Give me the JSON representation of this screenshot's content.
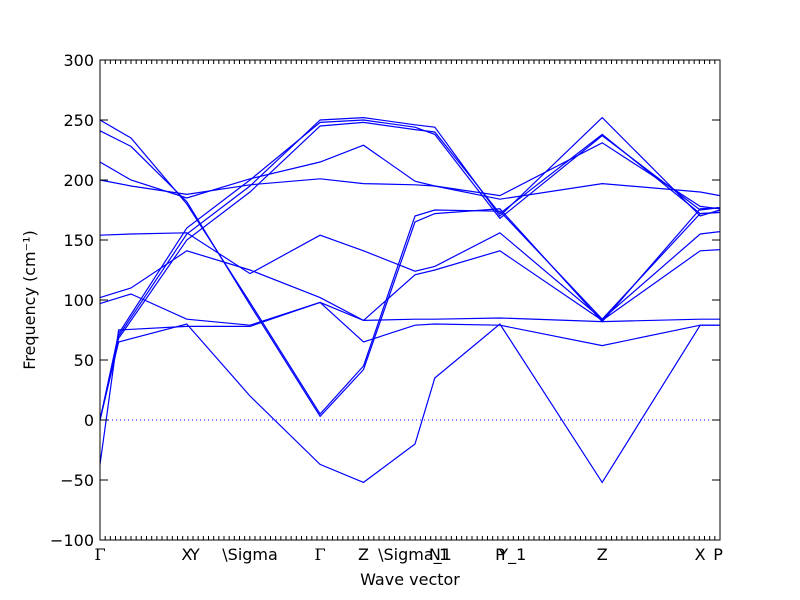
{
  "chart_data": {
    "type": "line",
    "xlabel": "Wave vector",
    "ylabel": "Frequency (cm⁻¹)",
    "ylim": [
      -100,
      300
    ],
    "y_ticks": [
      -100,
      -50,
      0,
      50,
      100,
      150,
      200,
      250,
      300
    ],
    "y_tick_labels": [
      "−100",
      "−50",
      "0",
      "50",
      "100",
      "150",
      "200",
      "250",
      "300"
    ],
    "xlim": [
      0,
      1
    ],
    "high_symmetry_points": [
      {
        "label": "Γ",
        "x": 0.0
      },
      {
        "label": "X",
        "x": 0.14
      },
      {
        "label": "Y",
        "x": 0.153
      },
      {
        "label": "\\Sigma",
        "x": 0.242
      },
      {
        "label": "Γ",
        "x": 0.355
      },
      {
        "label": "Z",
        "x": 0.425
      },
      {
        "label": "\\Sigma_1",
        "x": 0.508
      },
      {
        "label": "N",
        "x": 0.54
      },
      {
        "label": "1",
        "x": 0.555
      },
      {
        "label": "P",
        "x": 0.645
      },
      {
        "label": "Y_1",
        "x": 0.665
      },
      {
        "label": "Z",
        "x": 0.81
      },
      {
        "label": "X",
        "x": 0.968
      },
      {
        "label": "P",
        "x": 0.997
      }
    ],
    "zero_line": 0,
    "line_color": "#0000ff",
    "series": [
      {
        "x": [
          0,
          0.03,
          0.14,
          0.242,
          0.355,
          0.425,
          0.508,
          0.54,
          0.645,
          0.81,
          0.968,
          1
        ],
        "y": [
          0,
          70,
          155,
          195,
          250,
          252,
          246,
          244,
          170,
          252,
          170,
          175
        ]
      },
      {
        "x": [
          0,
          0.03,
          0.14,
          0.242,
          0.355,
          0.425,
          0.508,
          0.54,
          0.645,
          0.81,
          0.968,
          1
        ],
        "y": [
          0,
          68,
          150,
          190,
          245,
          248,
          242,
          240,
          172,
          238,
          172,
          173
        ]
      },
      {
        "x": [
          0,
          0.03,
          0.14,
          0.242,
          0.355,
          0.425,
          0.508,
          0.54,
          0.645,
          0.81,
          0.968,
          1
        ],
        "y": [
          0,
          72,
          160,
          200,
          248,
          250,
          244,
          238,
          168,
          237,
          175,
          177
        ]
      },
      {
        "x": [
          0,
          0.05,
          0.14,
          0.242,
          0.355,
          0.425,
          0.508,
          0.54,
          0.645,
          0.81,
          0.968,
          1
        ],
        "y": [
          250,
          235,
          180,
          98,
          5,
          45,
          170,
          175,
          174,
          84,
          172,
          173
        ]
      },
      {
        "x": [
          0,
          0.05,
          0.14,
          0.242,
          0.355,
          0.425,
          0.508,
          0.54,
          0.645,
          0.81,
          0.968,
          1
        ],
        "y": [
          241,
          228,
          182,
          96,
          3,
          42,
          165,
          172,
          176,
          82,
          176,
          177
        ]
      },
      {
        "x": [
          0,
          0.05,
          0.14,
          0.242,
          0.355,
          0.425,
          0.508,
          0.54,
          0.645,
          0.81,
          0.968,
          1
        ],
        "y": [
          215,
          200,
          185,
          201,
          215,
          229,
          199,
          195,
          187,
          231,
          178,
          176
        ]
      },
      {
        "x": [
          0,
          0.05,
          0.14,
          0.242,
          0.355,
          0.425,
          0.508,
          0.54,
          0.645,
          0.81,
          0.968,
          1
        ],
        "y": [
          200,
          195,
          188,
          196,
          201,
          197,
          196,
          195,
          184,
          197,
          190,
          187
        ]
      },
      {
        "x": [
          0,
          0.05,
          0.14,
          0.242,
          0.355,
          0.425,
          0.508,
          0.54,
          0.645,
          0.81,
          0.968,
          1
        ],
        "y": [
          154,
          155,
          156,
          122,
          154,
          141,
          124,
          128,
          156,
          84,
          155,
          157
        ]
      },
      {
        "x": [
          0,
          0.05,
          0.14,
          0.242,
          0.355,
          0.425,
          0.508,
          0.54,
          0.645,
          0.81,
          0.968,
          1
        ],
        "y": [
          102,
          110,
          141,
          125,
          102,
          83,
          121,
          125,
          141,
          83,
          141,
          142
        ]
      },
      {
        "x": [
          0,
          0.05,
          0.14,
          0.242,
          0.355,
          0.425,
          0.508,
          0.54,
          0.645,
          0.81,
          0.968,
          1
        ],
        "y": [
          97,
          105,
          84,
          79,
          98,
          83,
          84,
          84,
          85,
          82,
          84,
          84
        ]
      },
      {
        "x": [
          0,
          0.03,
          0.14,
          0.242,
          0.355,
          0.425,
          0.508,
          0.54,
          0.645,
          0.81,
          0.968,
          1
        ],
        "y": [
          -37,
          75,
          78,
          78,
          98,
          65,
          79,
          80,
          79,
          62,
          79,
          79
        ]
      },
      {
        "x": [
          0,
          0.03,
          0.14,
          0.242,
          0.355,
          0.425,
          0.508,
          0.54,
          0.645,
          0.81,
          0.968,
          1
        ],
        "y": [
          0,
          65,
          80,
          20,
          -37,
          -52,
          -20,
          35,
          80,
          -52,
          79,
          79
        ]
      }
    ]
  }
}
